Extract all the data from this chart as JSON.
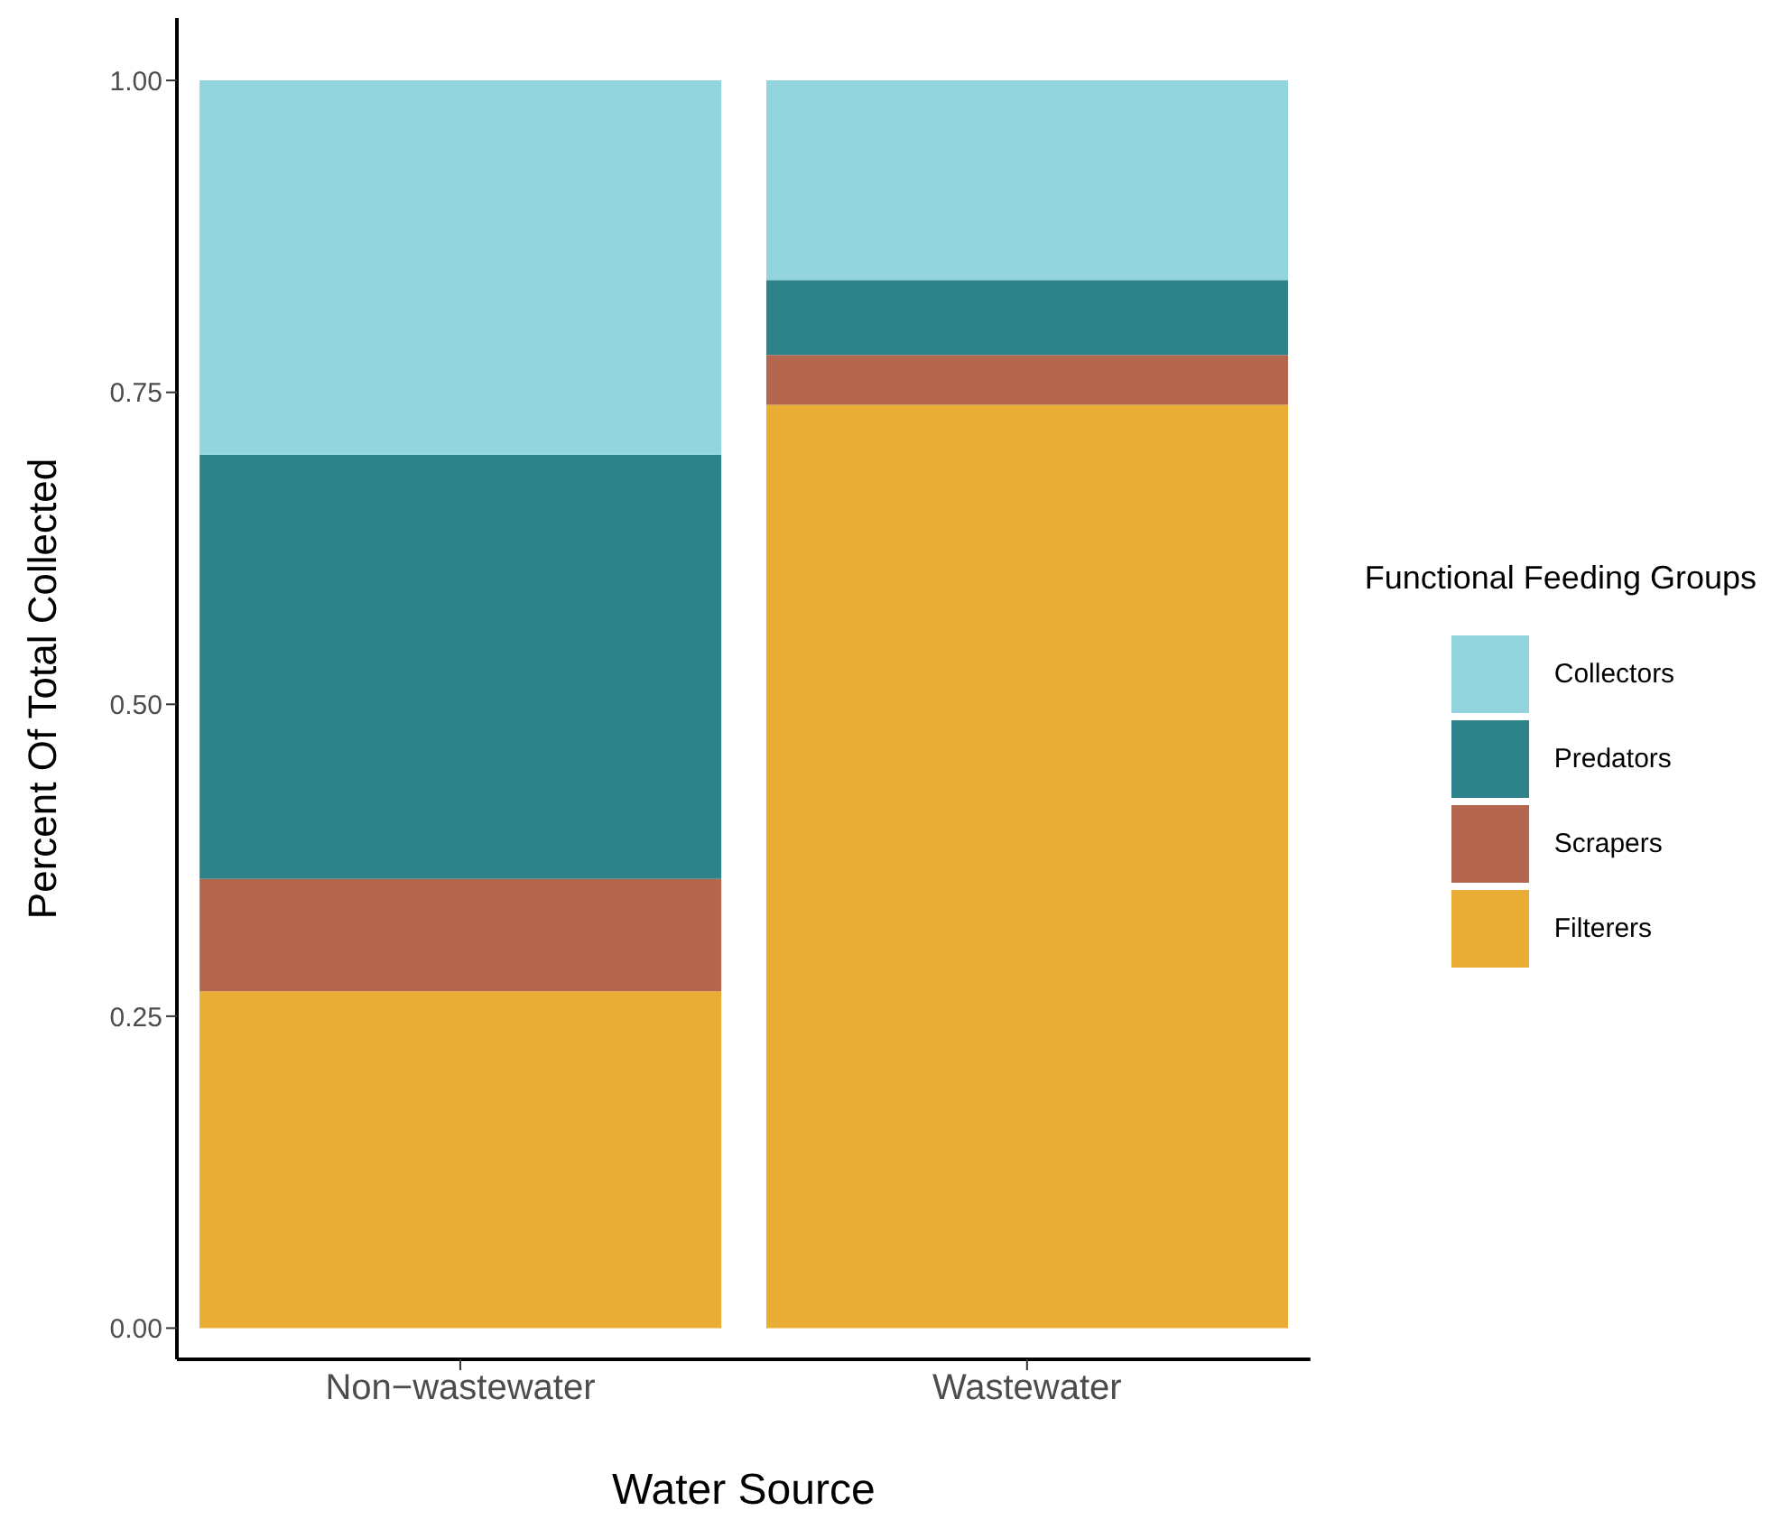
{
  "chart_data": {
    "type": "bar",
    "stacked": true,
    "xlabel": "Water Source",
    "ylabel": "Percent Of Total Collected",
    "legend_title": "Functional Feeding Groups",
    "legend": "right",
    "grid": false,
    "categories": [
      "Non−wastewater",
      "Wastewater"
    ],
    "ylim": [
      -0.025,
      1.05
    ],
    "yticks": [
      {
        "value": 0,
        "label": "0.00"
      },
      {
        "value": 0.25,
        "label": "0.25"
      },
      {
        "value": 0.5,
        "label": "0.50"
      },
      {
        "value": 0.75,
        "label": "0.75"
      },
      {
        "value": 1,
        "label": "1.00"
      }
    ],
    "series": [
      {
        "name": "Filterers",
        "color": "#e9ad35",
        "values": [
          0.27,
          0.74
        ]
      },
      {
        "name": "Scrapers",
        "color": "#b5664e",
        "values": [
          0.09,
          0.04
        ]
      },
      {
        "name": "Predators",
        "color": "#2e8289",
        "values": [
          0.34,
          0.06
        ]
      },
      {
        "name": "Collectors",
        "color": "#92d5de",
        "values": [
          0.3,
          0.16
        ]
      }
    ]
  }
}
